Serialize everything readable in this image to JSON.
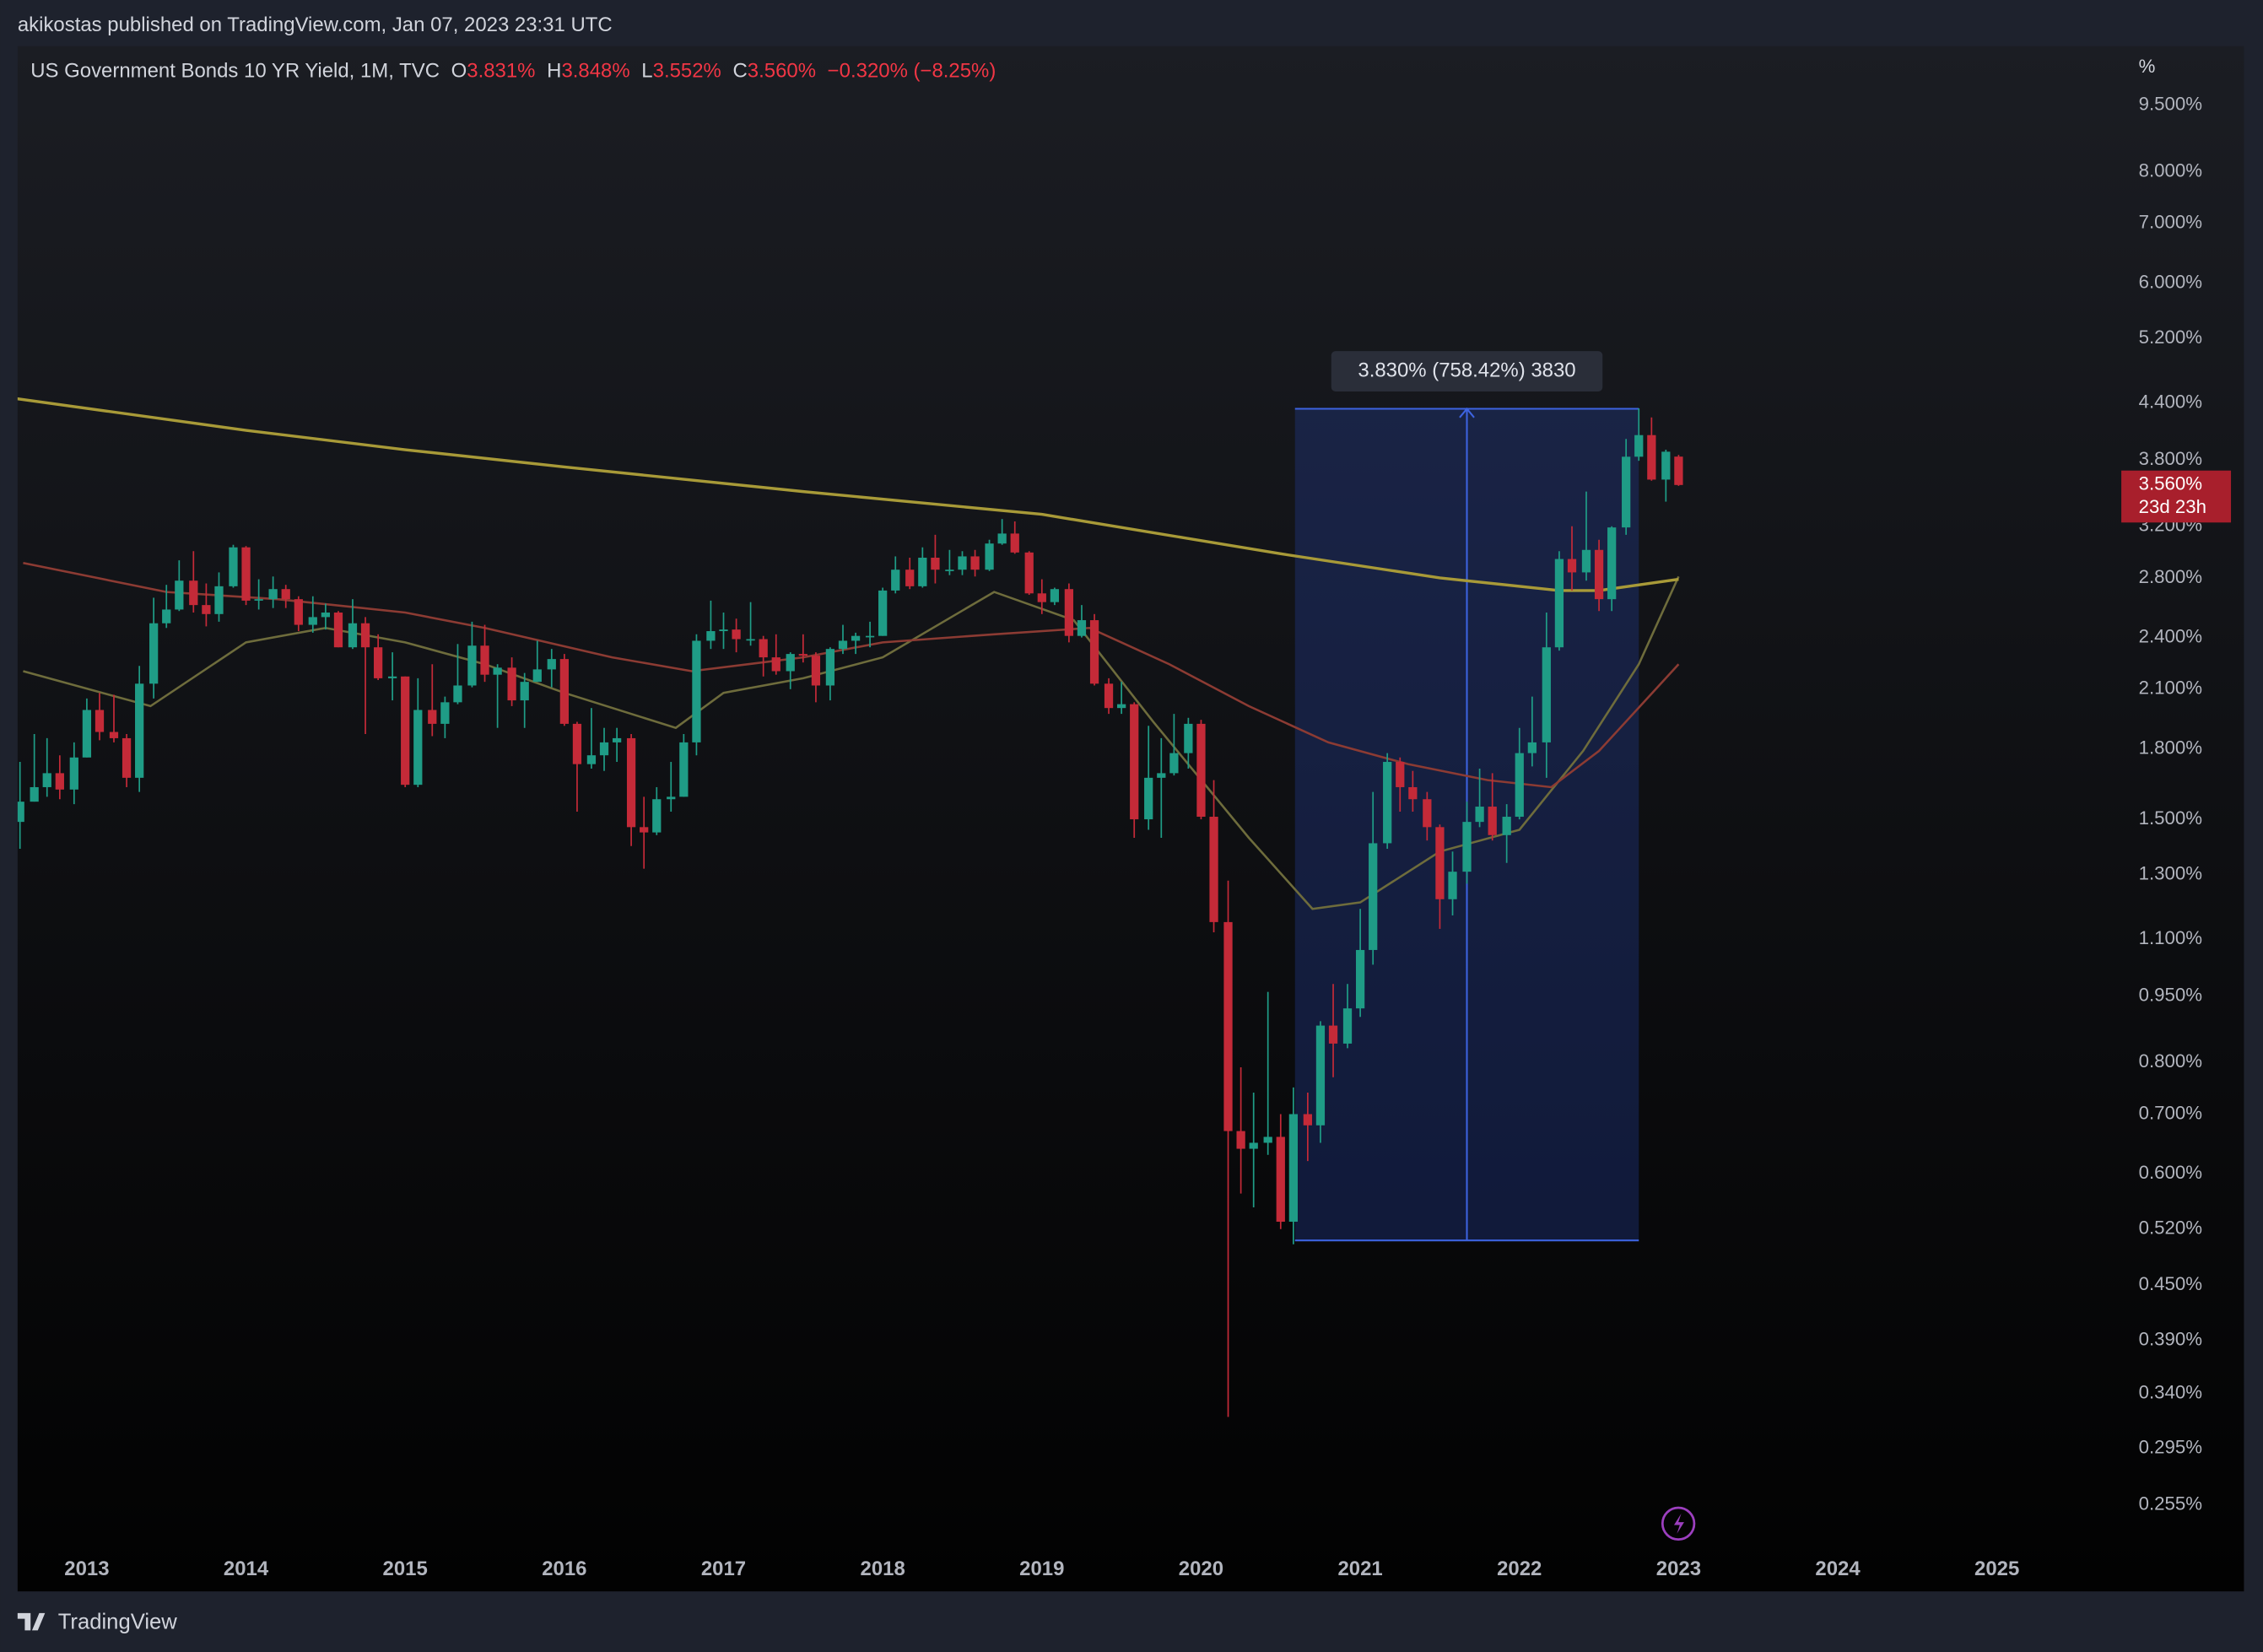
{
  "header": {
    "published": "akikostas published on TradingView.com, Jan 07, 2023 23:31 UTC",
    "footer": "TradingView"
  },
  "chart_data": {
    "type": "candlestick",
    "title": "US Government Bonds 10 YR Yield, 1M, TVC",
    "legend": [
      {
        "key": "O",
        "value": "3.831%"
      },
      {
        "key": "H",
        "value": "3.848%"
      },
      {
        "key": "L",
        "value": "3.552%"
      },
      {
        "key": "C",
        "value": "3.560%"
      }
    ],
    "change": "−0.320% (−8.25%)",
    "y_unit": "%",
    "log_y": true,
    "grid": false,
    "up_color": "#1f9c86",
    "down_color": "#c42a38",
    "xlim": [
      2012.565,
      2025.745
    ],
    "ylim": [
      0.2305,
      11.07
    ],
    "xticks": [
      2013,
      2014,
      2015,
      2016,
      2017,
      2018,
      2019,
      2020,
      2021,
      2022,
      2023,
      2024,
      2025
    ],
    "yticks": [
      {
        "value": 9.5,
        "label": "9.500%"
      },
      {
        "value": 8,
        "label": "8.000%"
      },
      {
        "value": 7,
        "label": "7.000%"
      },
      {
        "value": 6,
        "label": "6.000%"
      },
      {
        "value": 5.2,
        "label": "5.200%"
      },
      {
        "value": 4.4,
        "label": "4.400%"
      },
      {
        "value": 3.8,
        "label": "3.800%"
      },
      {
        "value": 3.2,
        "label": "3.200%"
      },
      {
        "value": 2.8,
        "label": "2.800%"
      },
      {
        "value": 2.4,
        "label": "2.400%"
      },
      {
        "value": 2.1,
        "label": "2.100%"
      },
      {
        "value": 1.8,
        "label": "1.800%"
      },
      {
        "value": 1.5,
        "label": "1.500%"
      },
      {
        "value": 1.3,
        "label": "1.300%"
      },
      {
        "value": 1.1,
        "label": "1.100%"
      },
      {
        "value": 0.95,
        "label": "0.950%"
      },
      {
        "value": 0.8,
        "label": "0.800%"
      },
      {
        "value": 0.7,
        "label": "0.700%"
      },
      {
        "value": 0.6,
        "label": "0.600%"
      },
      {
        "value": 0.52,
        "label": "0.520%"
      },
      {
        "value": 0.45,
        "label": "0.450%"
      },
      {
        "value": 0.39,
        "label": "0.390%"
      },
      {
        "value": 0.34,
        "label": "0.340%"
      },
      {
        "value": 0.295,
        "label": "0.295%"
      },
      {
        "value": 0.255,
        "label": "0.255%"
      }
    ],
    "x": [
      2012.58,
      2012.67,
      2012.75,
      2012.83,
      2012.92,
      2013.0,
      2013.08,
      2013.17,
      2013.25,
      2013.33,
      2013.42,
      2013.5,
      2013.58,
      2013.67,
      2013.75,
      2013.83,
      2013.92,
      2014.0,
      2014.08,
      2014.17,
      2014.25,
      2014.33,
      2014.42,
      2014.5,
      2014.58,
      2014.67,
      2014.75,
      2014.83,
      2014.92,
      2015.0,
      2015.08,
      2015.17,
      2015.25,
      2015.33,
      2015.42,
      2015.5,
      2015.58,
      2015.67,
      2015.75,
      2015.83,
      2015.92,
      2016.0,
      2016.08,
      2016.17,
      2016.25,
      2016.33,
      2016.42,
      2016.5,
      2016.58,
      2016.67,
      2016.75,
      2016.83,
      2016.92,
      2017.0,
      2017.08,
      2017.17,
      2017.25,
      2017.33,
      2017.42,
      2017.5,
      2017.58,
      2017.67,
      2017.75,
      2017.83,
      2017.92,
      2018.0,
      2018.08,
      2018.17,
      2018.25,
      2018.33,
      2018.42,
      2018.5,
      2018.58,
      2018.67,
      2018.75,
      2018.83,
      2018.92,
      2019.0,
      2019.08,
      2019.17,
      2019.25,
      2019.33,
      2019.42,
      2019.5,
      2019.58,
      2019.67,
      2019.75,
      2019.83,
      2019.92,
      2020.0,
      2020.08,
      2020.17,
      2020.25,
      2020.33,
      2020.42,
      2020.5,
      2020.58,
      2020.67,
      2020.75,
      2020.83,
      2020.92,
      2021.0,
      2021.08,
      2021.17,
      2021.25,
      2021.33,
      2021.42,
      2021.5,
      2021.58,
      2021.67,
      2021.75,
      2021.83,
      2021.92,
      2022.0,
      2022.08,
      2022.17,
      2022.25,
      2022.33,
      2022.42,
      2022.5,
      2022.58,
      2022.67,
      2022.75,
      2022.83,
      2022.92,
      2023.0
    ],
    "ohlc": [
      [
        1.49,
        1.74,
        1.39,
        1.57
      ],
      [
        1.57,
        1.87,
        1.57,
        1.63
      ],
      [
        1.63,
        1.85,
        1.59,
        1.69
      ],
      [
        1.69,
        1.77,
        1.58,
        1.62
      ],
      [
        1.62,
        1.83,
        1.56,
        1.76
      ],
      [
        1.76,
        2.05,
        1.76,
        1.99
      ],
      [
        1.99,
        2.08,
        1.84,
        1.88
      ],
      [
        1.88,
        2.07,
        1.83,
        1.85
      ],
      [
        1.85,
        1.87,
        1.63,
        1.67
      ],
      [
        1.67,
        2.23,
        1.61,
        2.13
      ],
      [
        2.13,
        2.66,
        2.05,
        2.49
      ],
      [
        2.49,
        2.75,
        2.46,
        2.58
      ],
      [
        2.58,
        2.93,
        2.57,
        2.78
      ],
      [
        2.78,
        3.0,
        2.56,
        2.61
      ],
      [
        2.61,
        2.76,
        2.47,
        2.55
      ],
      [
        2.55,
        2.84,
        2.5,
        2.74
      ],
      [
        2.74,
        3.05,
        2.73,
        3.03
      ],
      [
        3.03,
        3.04,
        2.61,
        2.64
      ],
      [
        2.64,
        2.79,
        2.58,
        2.65
      ],
      [
        2.65,
        2.81,
        2.59,
        2.72
      ],
      [
        2.72,
        2.75,
        2.59,
        2.65
      ],
      [
        2.65,
        2.67,
        2.44,
        2.48
      ],
      [
        2.48,
        2.67,
        2.43,
        2.53
      ],
      [
        2.53,
        2.62,
        2.45,
        2.56
      ],
      [
        2.56,
        2.57,
        2.34,
        2.34
      ],
      [
        2.34,
        2.65,
        2.33,
        2.49
      ],
      [
        2.49,
        2.53,
        1.87,
        2.34
      ],
      [
        2.34,
        2.42,
        2.15,
        2.16
      ],
      [
        2.16,
        2.31,
        2.04,
        2.17
      ],
      [
        2.17,
        2.17,
        1.63,
        1.64
      ],
      [
        1.64,
        2.16,
        1.63,
        1.99
      ],
      [
        1.99,
        2.24,
        1.86,
        1.92
      ],
      [
        1.92,
        2.06,
        1.85,
        2.03
      ],
      [
        2.03,
        2.36,
        2.02,
        2.12
      ],
      [
        2.12,
        2.5,
        2.11,
        2.35
      ],
      [
        2.35,
        2.48,
        2.14,
        2.18
      ],
      [
        2.18,
        2.24,
        1.9,
        2.22
      ],
      [
        2.22,
        2.28,
        2.01,
        2.04
      ],
      [
        2.04,
        2.19,
        1.9,
        2.14
      ],
      [
        2.14,
        2.38,
        2.14,
        2.21
      ],
      [
        2.21,
        2.33,
        2.11,
        2.27
      ],
      [
        2.27,
        2.3,
        1.91,
        1.92
      ],
      [
        1.92,
        1.93,
        1.53,
        1.73
      ],
      [
        1.73,
        2.0,
        1.71,
        1.77
      ],
      [
        1.77,
        1.9,
        1.7,
        1.83
      ],
      [
        1.83,
        1.9,
        1.74,
        1.85
      ],
      [
        1.85,
        1.87,
        1.4,
        1.47
      ],
      [
        1.47,
        1.59,
        1.32,
        1.45
      ],
      [
        1.45,
        1.63,
        1.44,
        1.58
      ],
      [
        1.58,
        1.74,
        1.53,
        1.59
      ],
      [
        1.59,
        1.87,
        1.59,
        1.83
      ],
      [
        1.83,
        2.42,
        1.77,
        2.38
      ],
      [
        2.38,
        2.64,
        2.33,
        2.44
      ],
      [
        2.44,
        2.56,
        2.33,
        2.45
      ],
      [
        2.45,
        2.52,
        2.31,
        2.39
      ],
      [
        2.39,
        2.63,
        2.35,
        2.39
      ],
      [
        2.39,
        2.41,
        2.17,
        2.28
      ],
      [
        2.28,
        2.42,
        2.18,
        2.2
      ],
      [
        2.2,
        2.31,
        2.1,
        2.3
      ],
      [
        2.3,
        2.42,
        2.25,
        2.29
      ],
      [
        2.29,
        2.31,
        2.03,
        2.12
      ],
      [
        2.12,
        2.34,
        2.04,
        2.33
      ],
      [
        2.33,
        2.48,
        2.3,
        2.38
      ],
      [
        2.38,
        2.43,
        2.3,
        2.41
      ],
      [
        2.41,
        2.5,
        2.34,
        2.41
      ],
      [
        2.41,
        2.73,
        2.41,
        2.71
      ],
      [
        2.71,
        2.96,
        2.69,
        2.86
      ],
      [
        2.86,
        2.95,
        2.72,
        2.74
      ],
      [
        2.74,
        3.03,
        2.73,
        2.95
      ],
      [
        2.95,
        3.13,
        2.76,
        2.86
      ],
      [
        2.86,
        3.01,
        2.82,
        2.86
      ],
      [
        2.86,
        3.0,
        2.82,
        2.96
      ],
      [
        2.96,
        3.01,
        2.81,
        2.86
      ],
      [
        2.86,
        3.09,
        2.85,
        3.06
      ],
      [
        3.06,
        3.26,
        3.05,
        3.14
      ],
      [
        3.14,
        3.24,
        2.98,
        2.99
      ],
      [
        2.99,
        3.0,
        2.68,
        2.69
      ],
      [
        2.69,
        2.79,
        2.55,
        2.63
      ],
      [
        2.63,
        2.73,
        2.61,
        2.72
      ],
      [
        2.72,
        2.76,
        2.37,
        2.41
      ],
      [
        2.41,
        2.61,
        2.4,
        2.51
      ],
      [
        2.51,
        2.55,
        2.12,
        2.13
      ],
      [
        2.13,
        2.16,
        1.97,
        2.0
      ],
      [
        2.0,
        2.14,
        1.97,
        2.02
      ],
      [
        2.02,
        2.03,
        1.43,
        1.5
      ],
      [
        1.5,
        1.91,
        1.46,
        1.67
      ],
      [
        1.67,
        1.85,
        1.43,
        1.69
      ],
      [
        1.69,
        1.97,
        1.68,
        1.78
      ],
      [
        1.78,
        1.95,
        1.71,
        1.92
      ],
      [
        1.92,
        1.94,
        1.5,
        1.51
      ],
      [
        1.51,
        1.66,
        1.12,
        1.15
      ],
      [
        1.15,
        1.28,
        0.32,
        0.67
      ],
      [
        0.67,
        0.79,
        0.57,
        0.64
      ],
      [
        0.64,
        0.74,
        0.55,
        0.65
      ],
      [
        0.65,
        0.96,
        0.63,
        0.66
      ],
      [
        0.66,
        0.7,
        0.52,
        0.53
      ],
      [
        0.53,
        0.75,
        0.5,
        0.7
      ],
      [
        0.7,
        0.74,
        0.62,
        0.68
      ],
      [
        0.68,
        0.89,
        0.65,
        0.88
      ],
      [
        0.88,
        0.98,
        0.77,
        0.84
      ],
      [
        0.84,
        0.98,
        0.83,
        0.92
      ],
      [
        0.92,
        1.19,
        0.9,
        1.07
      ],
      [
        1.07,
        1.61,
        1.03,
        1.41
      ],
      [
        1.41,
        1.78,
        1.39,
        1.74
      ],
      [
        1.74,
        1.76,
        1.53,
        1.63
      ],
      [
        1.63,
        1.7,
        1.53,
        1.58
      ],
      [
        1.58,
        1.61,
        1.42,
        1.47
      ],
      [
        1.47,
        1.48,
        1.13,
        1.22
      ],
      [
        1.22,
        1.38,
        1.17,
        1.31
      ],
      [
        1.31,
        1.57,
        1.27,
        1.49
      ],
      [
        1.49,
        1.71,
        1.47,
        1.55
      ],
      [
        1.55,
        1.69,
        1.42,
        1.44
      ],
      [
        1.44,
        1.56,
        1.34,
        1.51
      ],
      [
        1.51,
        1.9,
        1.5,
        1.78
      ],
      [
        1.78,
        2.06,
        1.72,
        1.83
      ],
      [
        1.83,
        2.56,
        1.67,
        2.34
      ],
      [
        2.34,
        3.0,
        2.32,
        2.94
      ],
      [
        2.94,
        3.2,
        2.71,
        2.84
      ],
      [
        2.84,
        3.5,
        2.78,
        3.01
      ],
      [
        3.01,
        3.09,
        2.57,
        2.65
      ],
      [
        2.65,
        3.2,
        2.57,
        3.19
      ],
      [
        3.19,
        4.01,
        3.13,
        3.83
      ],
      [
        3.83,
        4.34,
        3.79,
        4.05
      ],
      [
        4.05,
        4.24,
        3.6,
        3.61
      ],
      [
        3.61,
        3.9,
        3.41,
        3.88
      ],
      [
        3.831,
        3.848,
        3.552,
        3.56
      ]
    ],
    "series": [
      {
        "color": "#6e6c3c",
        "x": [
          2012.6,
          2013.4,
          2014.0,
          2014.5,
          2015.0,
          2015.5,
          2016.0,
          2016.7,
          2017.0,
          2017.5,
          2018.0,
          2018.7,
          2019.2,
          2019.7,
          2020.3,
          2020.7,
          2021.0,
          2021.5,
          2022.0,
          2022.4,
          2022.75,
          2023.0
        ],
        "values": [
          2.2,
          2.01,
          2.37,
          2.46,
          2.37,
          2.24,
          2.08,
          1.9,
          2.08,
          2.16,
          2.28,
          2.7,
          2.51,
          1.93,
          1.43,
          1.19,
          1.21,
          1.38,
          1.46,
          1.79,
          2.24,
          2.81
        ]
      },
      {
        "color": "#8c3b33",
        "x": [
          2012.6,
          2013.5,
          2014.2,
          2015.0,
          2015.5,
          2016.3,
          2016.8,
          2017.5,
          2018.0,
          2018.7,
          2019.3,
          2019.8,
          2020.3,
          2020.8,
          2021.3,
          2021.8,
          2022.2,
          2022.5,
          2023.0
        ],
        "values": [
          2.91,
          2.7,
          2.65,
          2.56,
          2.46,
          2.28,
          2.2,
          2.28,
          2.37,
          2.42,
          2.46,
          2.24,
          2.01,
          1.83,
          1.73,
          1.66,
          1.63,
          1.79,
          2.24
        ]
      },
      {
        "color": "#a89a38",
        "x": [
          2012.56,
          2014,
          2015,
          2016,
          2017.5,
          2019,
          2020.5,
          2021.5,
          2022.25,
          2022.5,
          2023.0
        ],
        "values": [
          4.45,
          4.1,
          3.9,
          3.73,
          3.5,
          3.3,
          2.98,
          2.8,
          2.71,
          2.71,
          2.79
        ]
      }
    ],
    "measure": {
      "label": "3.830% (758.42%) 3830",
      "x": [
        2020.59,
        2022.75
      ],
      "y": [
        0.505,
        4.335
      ]
    },
    "last_price": {
      "value": 3.56,
      "label": "3.560%"
    },
    "countdown": "23d 23h"
  }
}
